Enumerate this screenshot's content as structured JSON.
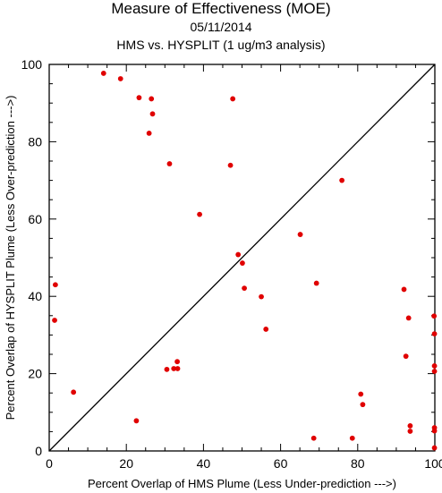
{
  "chart_data": {
    "type": "scatter",
    "title": "Measure of Effectiveness (MOE)",
    "date": "05/11/2014",
    "subtitle": "HMS vs. HYSPLIT  (1 ug/m3 analysis)",
    "xlabel": "Percent Overlap of HMS Plume (Less Under-prediction --->)",
    "ylabel": "Percent Overlap of HYSPLIT Plume (Less Over-prediction --->)",
    "xlim": [
      0,
      100
    ],
    "ylim": [
      0,
      100
    ],
    "xticks": [
      "0",
      "20",
      "40",
      "60",
      "80",
      "100"
    ],
    "yticks": [
      "0",
      "20",
      "40",
      "60",
      "80",
      "100"
    ],
    "reference_line": "diagonal y = x",
    "marker_color": "#e00000",
    "points": [
      {
        "x": 14.1,
        "y": 97.7
      },
      {
        "x": 18.5,
        "y": 96.3
      },
      {
        "x": 23.3,
        "y": 91.4
      },
      {
        "x": 26.5,
        "y": 91.1
      },
      {
        "x": 47.6,
        "y": 91.1
      },
      {
        "x": 26.8,
        "y": 87.2
      },
      {
        "x": 25.9,
        "y": 82.2
      },
      {
        "x": 31.2,
        "y": 74.3
      },
      {
        "x": 47.0,
        "y": 73.9
      },
      {
        "x": 75.9,
        "y": 70.0
      },
      {
        "x": 39.0,
        "y": 61.2
      },
      {
        "x": 65.1,
        "y": 56.0
      },
      {
        "x": 49.0,
        "y": 50.8
      },
      {
        "x": 50.1,
        "y": 48.6
      },
      {
        "x": 1.6,
        "y": 43.0
      },
      {
        "x": 69.3,
        "y": 43.4
      },
      {
        "x": 50.6,
        "y": 42.1
      },
      {
        "x": 92.0,
        "y": 41.8
      },
      {
        "x": 55.0,
        "y": 39.9
      },
      {
        "x": 1.4,
        "y": 33.8
      },
      {
        "x": 93.2,
        "y": 34.4
      },
      {
        "x": 99.8,
        "y": 34.9
      },
      {
        "x": 56.2,
        "y": 31.5
      },
      {
        "x": 99.9,
        "y": 30.3
      },
      {
        "x": 92.5,
        "y": 24.5
      },
      {
        "x": 33.2,
        "y": 23.1
      },
      {
        "x": 30.5,
        "y": 21.1
      },
      {
        "x": 32.3,
        "y": 21.3
      },
      {
        "x": 33.3,
        "y": 21.3
      },
      {
        "x": 99.9,
        "y": 22.0
      },
      {
        "x": 99.9,
        "y": 20.6
      },
      {
        "x": 6.3,
        "y": 15.2
      },
      {
        "x": 80.8,
        "y": 14.7
      },
      {
        "x": 81.3,
        "y": 12.0
      },
      {
        "x": 22.6,
        "y": 7.8
      },
      {
        "x": 93.6,
        "y": 6.5
      },
      {
        "x": 93.6,
        "y": 5.1
      },
      {
        "x": 99.9,
        "y": 6.0
      },
      {
        "x": 99.9,
        "y": 5.2
      },
      {
        "x": 68.6,
        "y": 3.3
      },
      {
        "x": 78.6,
        "y": 3.3
      },
      {
        "x": 99.9,
        "y": 0.8
      }
    ]
  }
}
